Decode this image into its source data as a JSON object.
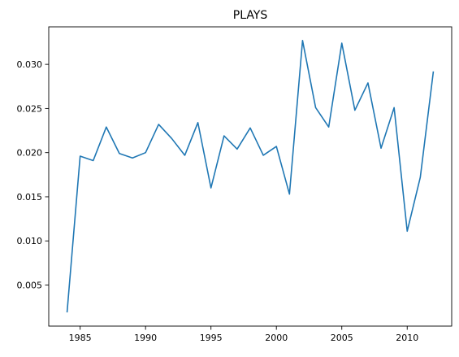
{
  "chart_data": {
    "type": "line",
    "title": "PLAYS",
    "xlabel": "",
    "ylabel": "",
    "x": [
      1984,
      1985,
      1986,
      1987,
      1988,
      1989,
      1990,
      1991,
      1992,
      1993,
      1994,
      1995,
      1996,
      1997,
      1998,
      1999,
      2000,
      2001,
      2002,
      2003,
      2004,
      2005,
      2006,
      2007,
      2008,
      2009,
      2010,
      2011,
      2012
    ],
    "series": [
      {
        "values": [
          0.0019,
          0.0196,
          0.0191,
          0.0229,
          0.0199,
          0.0194,
          0.02,
          0.0232,
          0.0216,
          0.0197,
          0.0234,
          0.016,
          0.0219,
          0.0204,
          0.0228,
          0.0197,
          0.0207,
          0.0153,
          0.0327,
          0.0251,
          0.0229,
          0.0324,
          0.0248,
          0.0279,
          0.0205,
          0.0251,
          0.0111,
          0.0172,
          0.0292
        ],
        "color": "#1f77b4"
      }
    ],
    "xlim": [
      1982.6,
      2013.4
    ],
    "ylim": [
      0.00035,
      0.03425
    ],
    "xticks": [
      1985,
      1990,
      1995,
      2000,
      2005,
      2010
    ],
    "xtick_labels": [
      "1985",
      "1990",
      "1995",
      "2000",
      "2005",
      "2010"
    ],
    "yticks": [
      0.005,
      0.01,
      0.015,
      0.02,
      0.025,
      0.03
    ],
    "ytick_labels": [
      "0.005",
      "0.010",
      "0.015",
      "0.020",
      "0.025",
      "0.030"
    ],
    "grid": false,
    "legend": "none"
  }
}
